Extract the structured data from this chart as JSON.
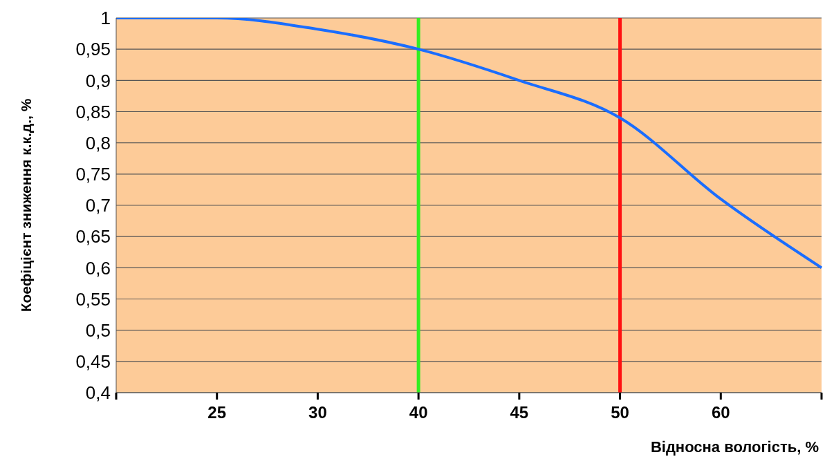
{
  "chart_data": {
    "type": "line",
    "xlabel": "Відносна вологість, %",
    "ylabel": "Коефіцієнт зниження к.к.д., %",
    "categories": [
      null,
      "25",
      "30",
      "40",
      "45",
      "50",
      "60",
      null
    ],
    "series": [
      {
        "color": "#1a6dff",
        "values": [
          1,
          1,
          0.982,
          0.95,
          0.9,
          0.84,
          0.71,
          0.6
        ]
      }
    ],
    "ylim": [
      0.4,
      1
    ],
    "yticks": [
      {
        "value": 0.4,
        "label": "0,4"
      },
      {
        "value": 0.45,
        "label": "0,45"
      },
      {
        "value": 0.5,
        "label": "0,5"
      },
      {
        "value": 0.55,
        "label": "0,55"
      },
      {
        "value": 0.6,
        "label": "0,6"
      },
      {
        "value": 0.65,
        "label": "0,65"
      },
      {
        "value": 0.7,
        "label": "0,7"
      },
      {
        "value": 0.75,
        "label": "0,75"
      },
      {
        "value": 0.8,
        "label": "0,8"
      },
      {
        "value": 0.85,
        "label": "0,85"
      },
      {
        "value": 0.9,
        "label": "0,9"
      },
      {
        "value": 0.95,
        "label": "0,95"
      },
      {
        "value": 1,
        "label": "1"
      }
    ],
    "ref_lines": [
      {
        "axis": "x",
        "value": "40",
        "color": "#33ee22"
      },
      {
        "axis": "x",
        "value": "50",
        "color": "#ff1111"
      }
    ],
    "grid": "y",
    "marker": "none",
    "line_style": "solid"
  }
}
